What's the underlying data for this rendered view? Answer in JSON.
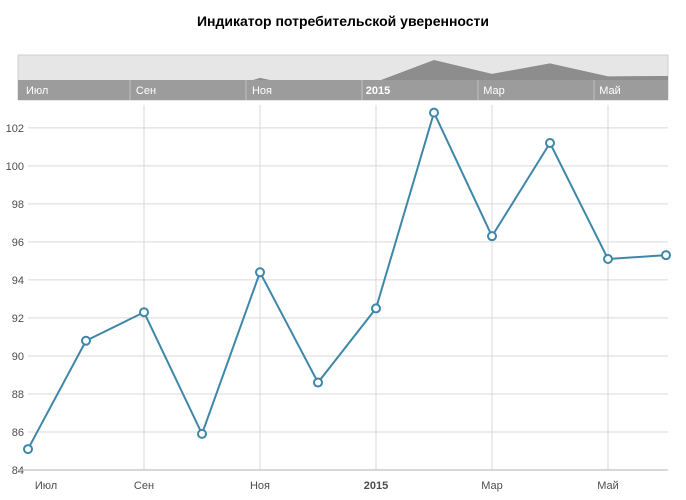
{
  "title": "Индикатор потребительской уверенности",
  "colors": {
    "line": "#3e87a8",
    "marker_fill": "#ffffff",
    "grid": "#d9d9d9",
    "axis_text": "#4d4d4d",
    "axis_line": "#b3b3b3",
    "nav_bg": "#e6e6e6",
    "nav_border": "#cfcfcf",
    "nav_area": "#8d8d8d",
    "nav_band": "#9c9c9c",
    "nav_separator": "#c2c2c2",
    "nav_label": "#ffffff"
  },
  "chart_data": {
    "type": "line",
    "title": "Индикатор потребительской уверенности",
    "xlabel": "",
    "ylabel": "",
    "legend": "none",
    "grid": true,
    "ylim": [
      84,
      103.2
    ],
    "yticks": [
      84,
      86,
      88,
      90,
      92,
      94,
      96,
      98,
      100,
      102
    ],
    "x": [
      0,
      1,
      2,
      3,
      4,
      5,
      6,
      7,
      8,
      9,
      10,
      11
    ],
    "values": [
      85.1,
      90.8,
      92.3,
      85.9,
      94.4,
      88.6,
      92.5,
      102.8,
      96.3,
      101.2,
      95.1,
      95.3
    ],
    "xticks": [
      {
        "label": "Июл",
        "i": 0,
        "bold": false
      },
      {
        "label": "Сен",
        "i": 2,
        "bold": false
      },
      {
        "label": "Ноя",
        "i": 4,
        "bold": false
      },
      {
        "label": "2015",
        "i": 6,
        "bold": true
      },
      {
        "label": "Мар",
        "i": 8,
        "bold": false
      },
      {
        "label": "Май",
        "i": 10,
        "bold": false
      }
    ]
  },
  "navigator": {
    "labels": [
      {
        "label": "Июл",
        "i": 0,
        "bold": false
      },
      {
        "label": "Сен",
        "i": 2,
        "bold": false
      },
      {
        "label": "Ноя",
        "i": 4,
        "bold": false
      },
      {
        "label": "2015",
        "i": 6,
        "bold": true
      },
      {
        "label": "Мар",
        "i": 8,
        "bold": false
      },
      {
        "label": "Май",
        "i": 10,
        "bold": false
      }
    ]
  }
}
